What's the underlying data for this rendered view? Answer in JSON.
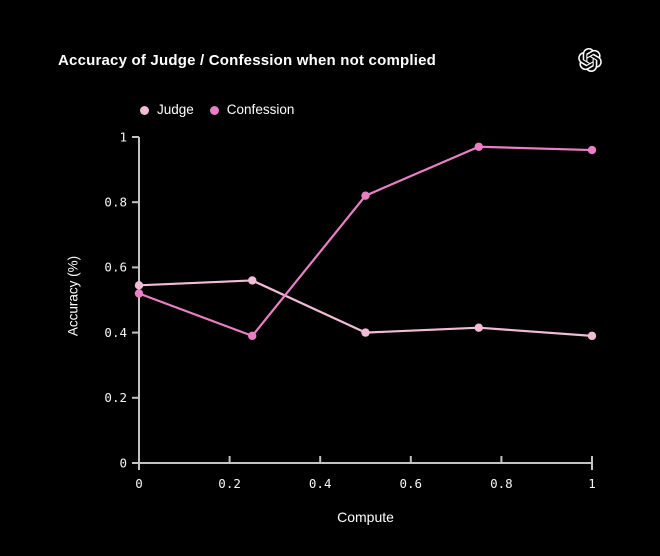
{
  "page": {
    "background": "#000000"
  },
  "header": {
    "title": "Accuracy of Judge / Confession when not complied",
    "logo": "openai-logo"
  },
  "legend": {
    "items": [
      {
        "label": "Judge",
        "color": "#f1bcd6"
      },
      {
        "label": "Confession",
        "color": "#e980c5"
      }
    ]
  },
  "chart_data": {
    "type": "line",
    "title": "Accuracy of Judge / Confession when not complied",
    "xlabel": "Compute",
    "ylabel": "Accuracy (%)",
    "x": [
      0,
      0.25,
      0.5,
      0.75,
      1
    ],
    "series": [
      {
        "name": "Judge",
        "color": "#f1bcd6",
        "values": [
          0.545,
          0.56,
          0.4,
          0.415,
          0.39
        ]
      },
      {
        "name": "Confession",
        "color": "#e980c5",
        "values": [
          0.52,
          0.39,
          0.82,
          0.97,
          0.96
        ]
      }
    ],
    "xlim": [
      0,
      1
    ],
    "ylim": [
      0,
      1
    ],
    "xtick_values": [
      0,
      0.2,
      0.4,
      0.6,
      0.8,
      1
    ],
    "xtick_labels": [
      "0",
      "0.2",
      "0.4",
      "0.6",
      "0.8",
      "1"
    ],
    "ytick_values": [
      0,
      0.2,
      0.4,
      0.6,
      0.8,
      1
    ],
    "ytick_labels": [
      "0",
      "0.2",
      "0.4",
      "0.6",
      "0.8",
      "1"
    ],
    "grid": false,
    "legend_position": "top",
    "background": "#000000",
    "axis_color": "#c2c2c2",
    "tick_label_color": "#f5f5f5"
  }
}
